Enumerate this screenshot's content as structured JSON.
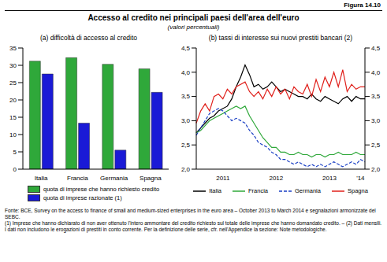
{
  "figure": "Figura 14.10",
  "title": "Accesso al credito nei principali paesi dell'area dell'euro",
  "subtitle": "(valori percentuali)",
  "source": "Fonte: BCE, Survey on the access to finance of small and medium-sized enterprises in the euro area – October 2013 to March 2014 e segnalazioni armonizzate del SEBC.",
  "notes": "(1) Imprese che hanno dichiarato di non aver ottenuto l'intero ammontare del credito richiesto sul totale delle imprese che hanno domandato credito. – (2) Dati mensili. I dati non includono le erogazioni di prestiti in conto corrente. Per la definizione delle serie, cfr. nell'Appendice la sezione: Note metodologiche.",
  "chart_data": [
    {
      "type": "bar",
      "title": "(a) difficoltà di accesso al credito",
      "categories": [
        "Italia",
        "Francia",
        "Germania",
        "Spagna"
      ],
      "series": [
        {
          "name": "quota di imprese che hanno richiesto credito",
          "color": "#2fa83a",
          "values": [
            31.2,
            32.2,
            30.3,
            29.0
          ]
        },
        {
          "name": "quota di imprese razionate (1)",
          "color": "#1a1ad6",
          "values": [
            27.5,
            13.3,
            5.5,
            22.2
          ]
        }
      ],
      "ylim": [
        0,
        35
      ],
      "yticks": [
        0,
        5,
        10,
        15,
        20,
        25,
        30,
        35
      ],
      "grid": false,
      "legend": "bottom"
    },
    {
      "type": "line",
      "title": "(b) tassi di interesse sui nuovi prestiti bancari (2)",
      "categories": [
        null,
        null,
        null,
        null,
        null,
        null,
        "2011",
        null,
        null,
        null,
        null,
        null,
        null,
        null,
        null,
        null,
        null,
        null,
        "2012",
        null,
        null,
        null,
        null,
        null,
        null,
        null,
        null,
        null,
        null,
        null,
        "2013",
        null,
        null,
        null,
        null,
        null,
        null,
        "'14",
        null
      ],
      "series": [
        {
          "name": "Italia",
          "color": "#000000",
          "line_style": "solid",
          "values": [
            2.75,
            2.85,
            2.95,
            3.05,
            3.1,
            3.2,
            3.25,
            3.3,
            3.45,
            3.7,
            3.9,
            4.15,
            3.95,
            3.7,
            3.75,
            3.65,
            3.7,
            3.8,
            3.7,
            3.6,
            3.65,
            3.6,
            3.55,
            3.5,
            3.5,
            3.45,
            3.55,
            3.45,
            3.4,
            3.5,
            3.45,
            3.4,
            3.35,
            3.45,
            3.5,
            3.4,
            3.5,
            3.45,
            3.45
          ]
        },
        {
          "name": "Francia",
          "color": "#2fa83a",
          "line_style": "solid",
          "values": [
            2.75,
            2.8,
            2.9,
            3.0,
            3.05,
            3.1,
            3.15,
            3.2,
            3.25,
            3.3,
            3.25,
            3.3,
            3.1,
            2.95,
            2.8,
            2.65,
            2.55,
            2.45,
            2.45,
            2.35,
            2.35,
            2.3,
            2.3,
            2.35,
            2.3,
            2.3,
            2.25,
            2.3,
            2.3,
            2.25,
            2.3,
            2.3,
            2.35,
            2.3,
            2.3,
            2.3,
            2.35,
            2.3,
            2.3
          ]
        },
        {
          "name": "Germania",
          "color": "#1a3fc4",
          "line_style": "dashed",
          "values": [
            2.7,
            2.85,
            3.0,
            3.15,
            3.2,
            3.25,
            3.2,
            3.1,
            3.0,
            3.05,
            3.0,
            2.95,
            2.8,
            2.7,
            2.55,
            2.5,
            2.45,
            2.35,
            2.3,
            2.2,
            2.2,
            2.15,
            2.1,
            2.15,
            2.1,
            2.05,
            2.1,
            2.05,
            2.1,
            2.05,
            2.1,
            2.15,
            2.1,
            2.05,
            2.1,
            2.15,
            2.1,
            2.2,
            2.15
          ]
        },
        {
          "name": "Spagna",
          "color": "#e0201b",
          "line_style": "solid",
          "values": [
            2.95,
            3.2,
            3.35,
            3.2,
            3.5,
            3.55,
            3.45,
            3.65,
            3.55,
            3.7,
            3.75,
            3.8,
            3.6,
            3.5,
            3.6,
            3.45,
            3.65,
            3.5,
            3.7,
            3.55,
            3.65,
            3.45,
            3.7,
            3.6,
            3.55,
            3.75,
            3.5,
            3.85,
            3.6,
            3.9,
            3.7,
            4.0,
            3.7,
            4.05,
            3.6,
            3.75,
            3.65,
            3.7,
            3.7
          ]
        }
      ],
      "ylim": [
        2.0,
        4.5
      ],
      "yticks": [
        {
          "value": 2.0,
          "label": "2,0"
        },
        {
          "value": 2.5,
          "label": "2,5"
        },
        {
          "value": 3.0,
          "label": "3,0"
        },
        {
          "value": 3.5,
          "label": "3,5"
        },
        {
          "value": 4.0,
          "label": "4,0"
        },
        {
          "value": 4.5,
          "label": "4,5"
        }
      ],
      "y2lim": [
        2.0,
        4.5
      ],
      "y2ticks": [
        {
          "value": 2.0,
          "label": "2,0"
        },
        {
          "value": 2.5,
          "label": "2,5"
        },
        {
          "value": 3.0,
          "label": "3,0"
        },
        {
          "value": 3.5,
          "label": "3,5"
        },
        {
          "value": 4.0,
          "label": "4,0"
        },
        {
          "value": 4.5,
          "label": "4,5"
        }
      ],
      "grid": false,
      "legend": "bottom"
    }
  ]
}
